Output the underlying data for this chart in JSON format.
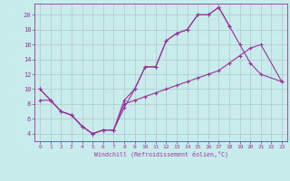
{
  "xlabel": "Windchill (Refroidissement éolien,°C)",
  "bg_color": "#c8ecec",
  "line_color": "#993399",
  "grid_color": "#b0c8c8",
  "xlim": [
    -0.5,
    23.5
  ],
  "ylim": [
    3,
    21.5
  ],
  "yticks": [
    4,
    6,
    8,
    10,
    12,
    14,
    16,
    18,
    20
  ],
  "xticks": [
    0,
    1,
    2,
    3,
    4,
    5,
    6,
    7,
    8,
    9,
    10,
    11,
    12,
    13,
    14,
    15,
    16,
    17,
    18,
    19,
    20,
    21,
    22,
    23
  ],
  "line1_x": [
    0,
    1,
    2,
    3,
    4,
    5,
    6,
    7,
    8,
    9,
    10,
    11,
    12,
    13,
    14,
    15,
    16,
    17,
    18
  ],
  "line1_y": [
    10,
    8.5,
    7,
    6.5,
    5,
    4,
    4.5,
    4.5,
    7.5,
    10,
    13,
    13,
    16.5,
    17.5,
    18,
    20,
    20,
    21,
    18.5
  ],
  "line2_x": [
    0,
    1,
    2,
    3,
    4,
    5,
    6,
    7,
    8,
    9,
    10,
    11,
    12,
    13,
    14,
    15,
    16,
    17,
    18,
    19,
    20,
    21,
    23
  ],
  "line2_y": [
    10,
    8.5,
    7,
    6.5,
    5,
    4,
    4.5,
    4.5,
    8.5,
    10,
    13,
    13,
    16.5,
    17.5,
    18,
    20,
    20,
    21,
    18.5,
    16,
    13.5,
    12,
    11
  ],
  "line3_x": [
    0,
    1,
    2,
    3,
    4,
    5,
    6,
    7,
    8,
    9,
    10,
    11,
    12,
    13,
    14,
    15,
    16,
    17,
    18,
    19,
    20,
    21,
    23
  ],
  "line3_y": [
    8.5,
    8.5,
    7,
    6.5,
    5,
    4,
    4.5,
    4.5,
    8,
    8.5,
    9,
    9.5,
    10,
    10.5,
    11,
    11.5,
    12,
    12.5,
    13.5,
    14.5,
    15.5,
    16,
    11
  ]
}
